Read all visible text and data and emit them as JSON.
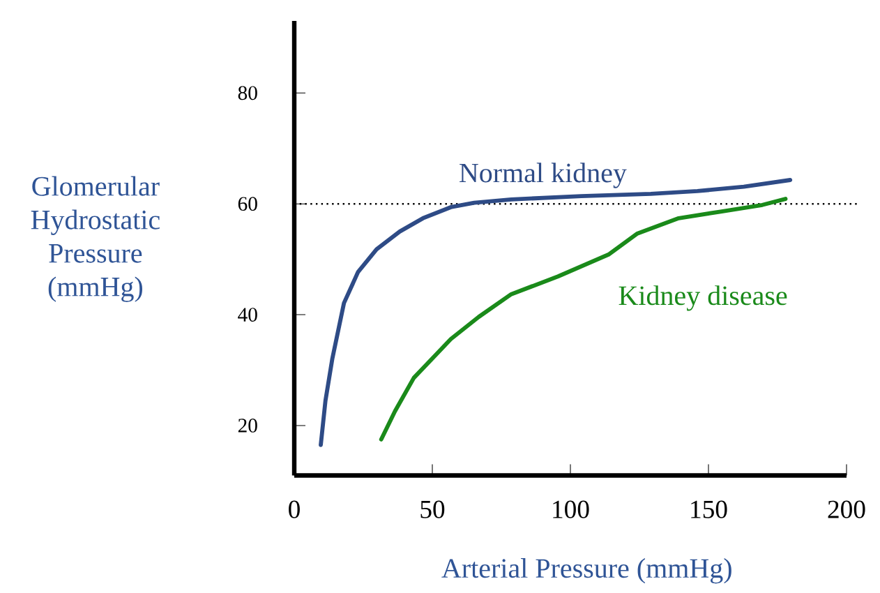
{
  "chart_data": {
    "type": "line",
    "xlabel": "Arterial Pressure (mmHg)",
    "ylabel": "Glomerular Hydrostatic Pressure (mmHg)",
    "xlim": [
      0,
      200
    ],
    "ylim": [
      11,
      93
    ],
    "xticks": [
      0,
      50,
      100,
      150,
      200
    ],
    "yticks": [
      20,
      40,
      60,
      80
    ],
    "series": [
      {
        "name": "Normal kidney",
        "color": "#2e4b86",
        "x": [
          9.6,
          11.3,
          13.8,
          18.0,
          23.1,
          29.8,
          38.2,
          46.6,
          56.7,
          65.2,
          78.6,
          103.9,
          129.1,
          146,
          162.8,
          179.6
        ],
        "values": [
          16.5,
          24.5,
          32.1,
          42.1,
          47.7,
          51.8,
          55.0,
          57.4,
          59.4,
          60.2,
          60.8,
          61.4,
          61.8,
          62.3,
          63.1,
          64.3
        ]
      },
      {
        "name": "Kidney disease",
        "color": "#1a8a1a",
        "x": [
          31.5,
          36.5,
          43.3,
          56.7,
          66.8,
          78.6,
          95.5,
          114,
          124.1,
          139.2,
          154.4,
          169.5,
          177.9
        ],
        "values": [
          17.5,
          22.6,
          28.6,
          35.6,
          39.6,
          43.7,
          46.9,
          50.9,
          54.6,
          57.4,
          58.6,
          59.8,
          60.9
        ]
      }
    ],
    "ref_lines": [
      {
        "axis": "y",
        "value": 60,
        "color": "#000000",
        "line_style": "dotted"
      }
    ]
  }
}
